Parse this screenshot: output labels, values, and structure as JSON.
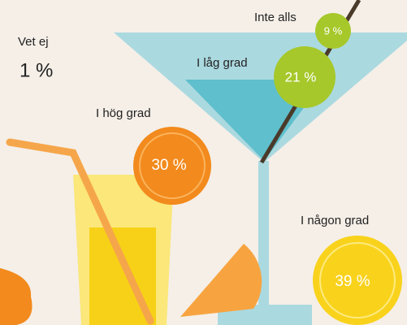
{
  "items": [
    {
      "label": "Vet ej",
      "value": "1 %"
    },
    {
      "label": "Inte alls",
      "value": "9 %"
    },
    {
      "label": "I låg grad",
      "value": "21 %"
    },
    {
      "label": "I hög grad",
      "value": "30 %"
    },
    {
      "label": "I någon grad",
      "value": "39 %"
    }
  ]
}
